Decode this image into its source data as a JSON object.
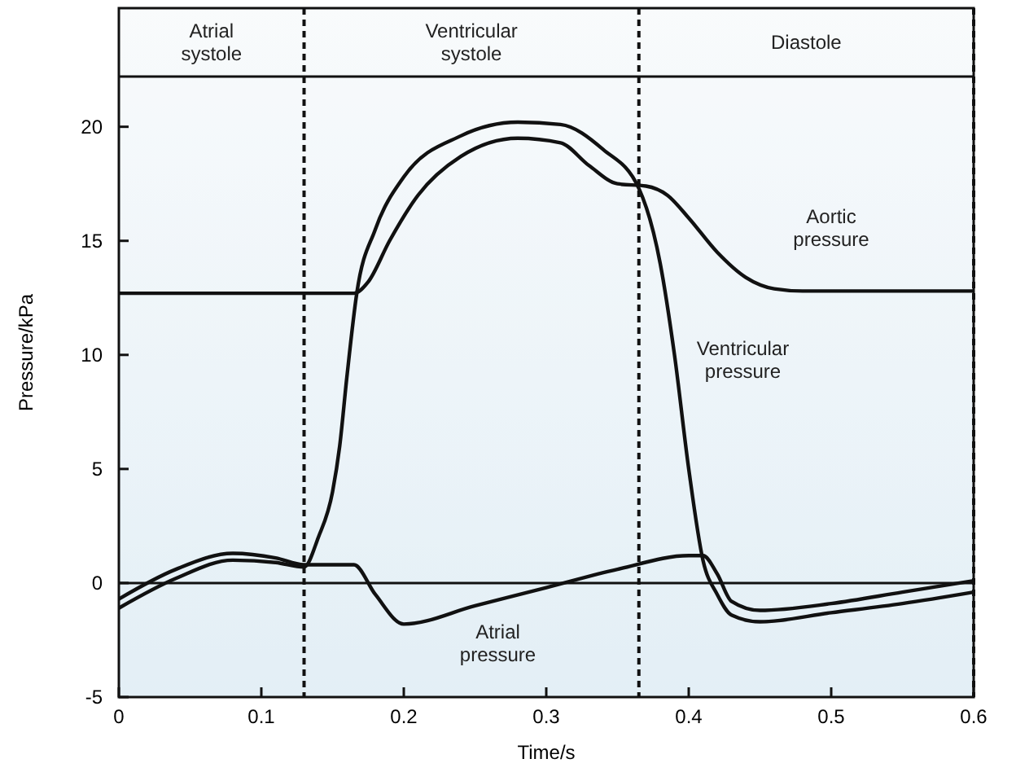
{
  "chart_data": {
    "type": "line",
    "xlabel": "Time/s",
    "ylabel": "Pressure/kPa",
    "xlim": [
      0,
      0.6
    ],
    "xticks": [
      0,
      0.1,
      0.2,
      0.3,
      0.4,
      0.5,
      0.6
    ],
    "ylim": [
      -5,
      25.2
    ],
    "yticks": [
      -5,
      0,
      5,
      10,
      15,
      20
    ],
    "grid": false,
    "marker": "none",
    "line_style": "solid",
    "series": [
      {
        "name": "Aortic pressure",
        "color": "#111111",
        "x": [
          0,
          0.165,
          0.175,
          0.19,
          0.21,
          0.24,
          0.28,
          0.31,
          0.33,
          0.35,
          0.37,
          0.385,
          0.4,
          0.42,
          0.44,
          0.46,
          0.48,
          0.6
        ],
        "values": [
          12.7,
          12.7,
          13.2,
          15,
          17,
          18.7,
          19.5,
          19.3,
          18.3,
          17.5,
          17.4,
          17,
          16,
          14.5,
          13.4,
          12.9,
          12.8,
          12.8
        ]
      },
      {
        "name": "Ventricular pressure",
        "color": "#111111",
        "x": [
          0,
          0.04,
          0.08,
          0.11,
          0.13,
          0.14,
          0.15,
          0.155,
          0.16,
          0.167,
          0.18,
          0.2,
          0.24,
          0.28,
          0.31,
          0.34,
          0.365,
          0.38,
          0.39,
          0.4,
          0.41,
          0.42,
          0.43,
          0.45,
          0.5,
          0.55,
          0.6
        ],
        "values": [
          -1.1,
          0.2,
          1.0,
          0.9,
          0.7,
          2,
          4,
          6,
          9,
          12.7,
          15.5,
          17.8,
          19.6,
          20.2,
          20.1,
          19,
          17.3,
          14,
          10,
          5,
          1,
          -0.5,
          -1.4,
          -1.7,
          -1.3,
          -0.9,
          -0.4
        ]
      },
      {
        "name": "Atrial pressure",
        "color": "#111111",
        "x": [
          0,
          0.04,
          0.08,
          0.11,
          0.13,
          0.165,
          0.18,
          0.2,
          0.25,
          0.3,
          0.35,
          0.4,
          0.41,
          0.42,
          0.43,
          0.45,
          0.5,
          0.55,
          0.6
        ],
        "values": [
          -0.7,
          0.6,
          1.3,
          1.1,
          0.8,
          0.8,
          -0.5,
          -1.8,
          -1.0,
          -0.2,
          0.6,
          1.2,
          1.2,
          0.4,
          -0.8,
          -1.2,
          -0.9,
          -0.4,
          0.1
        ]
      }
    ],
    "ref_lines": [
      {
        "axis": "y",
        "value": 0,
        "color": "#111111",
        "line_style": "solid"
      },
      {
        "axis": "y",
        "value": 22.2,
        "color": "#111111",
        "line_style": "solid"
      },
      {
        "axis": "x",
        "value": 0.13,
        "color": "#111111",
        "line_style": "dashed"
      },
      {
        "axis": "x",
        "value": 0.365,
        "color": "#111111",
        "line_style": "dashed"
      },
      {
        "axis": "x",
        "value": 0.6,
        "color": "#111111",
        "line_style": "dashed"
      }
    ],
    "bands": [
      {
        "axis": "x",
        "from": 0,
        "to": 0.13,
        "label": "Atrial systole",
        "color": "#ffffff"
      },
      {
        "axis": "x",
        "from": 0.13,
        "to": 0.365,
        "label": "Ventricular systole",
        "color": "#ffffff"
      },
      {
        "axis": "x",
        "from": 0.365,
        "to": 0.6,
        "label": "Diastole",
        "color": "#ffffff"
      }
    ]
  }
}
